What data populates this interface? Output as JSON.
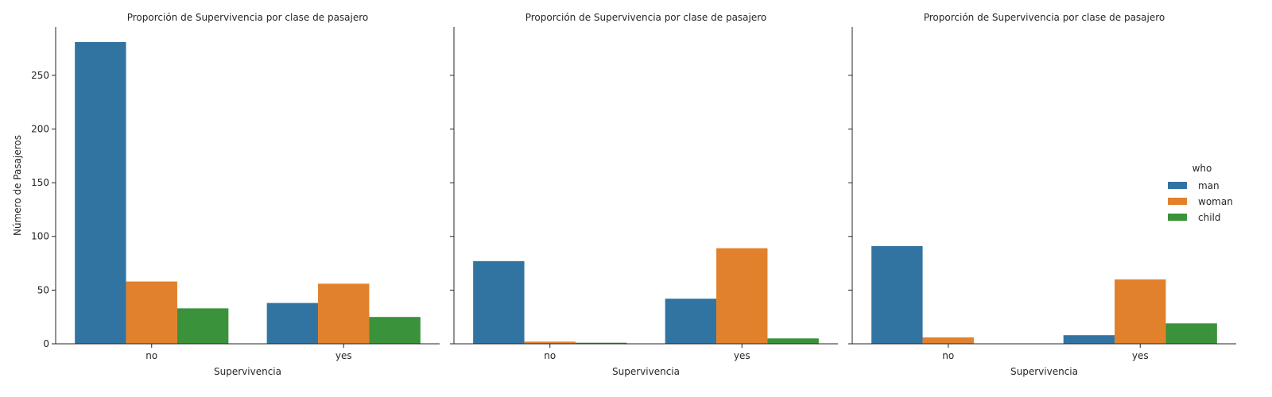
{
  "chart_data": {
    "type": "bar",
    "categories": [
      "no",
      "yes"
    ],
    "legend": {
      "title": "who",
      "placement": "right",
      "entries": [
        "man",
        "woman",
        "child"
      ]
    },
    "colors": {
      "man": "#3274a1",
      "woman": "#e1812c",
      "child": "#3a923a"
    },
    "ylabel": "Número de Pasajeros",
    "ylim": [
      0,
      295
    ],
    "yticks": [
      0,
      50,
      100,
      150,
      200,
      250
    ],
    "grid": false,
    "panels": [
      {
        "title": "Proporción de Supervivencia por clase de pasajero",
        "xlabel": "Supervivencia",
        "series": [
          {
            "name": "man",
            "values": [
              281,
              38
            ]
          },
          {
            "name": "woman",
            "values": [
              58,
              56
            ]
          },
          {
            "name": "child",
            "values": [
              33,
              25
            ]
          }
        ]
      },
      {
        "title": "Proporción de Supervivencia por clase de pasajero",
        "xlabel": "Supervivencia",
        "series": [
          {
            "name": "man",
            "values": [
              77,
              42
            ]
          },
          {
            "name": "woman",
            "values": [
              2,
              89
            ]
          },
          {
            "name": "child",
            "values": [
              1,
              5
            ]
          }
        ]
      },
      {
        "title": "Proporción de Supervivencia por clase de pasajero",
        "xlabel": "Supervivencia",
        "series": [
          {
            "name": "man",
            "values": [
              91,
              8
            ]
          },
          {
            "name": "woman",
            "values": [
              6,
              60
            ]
          },
          {
            "name": "child",
            "values": [
              0,
              19
            ]
          }
        ]
      }
    ]
  }
}
